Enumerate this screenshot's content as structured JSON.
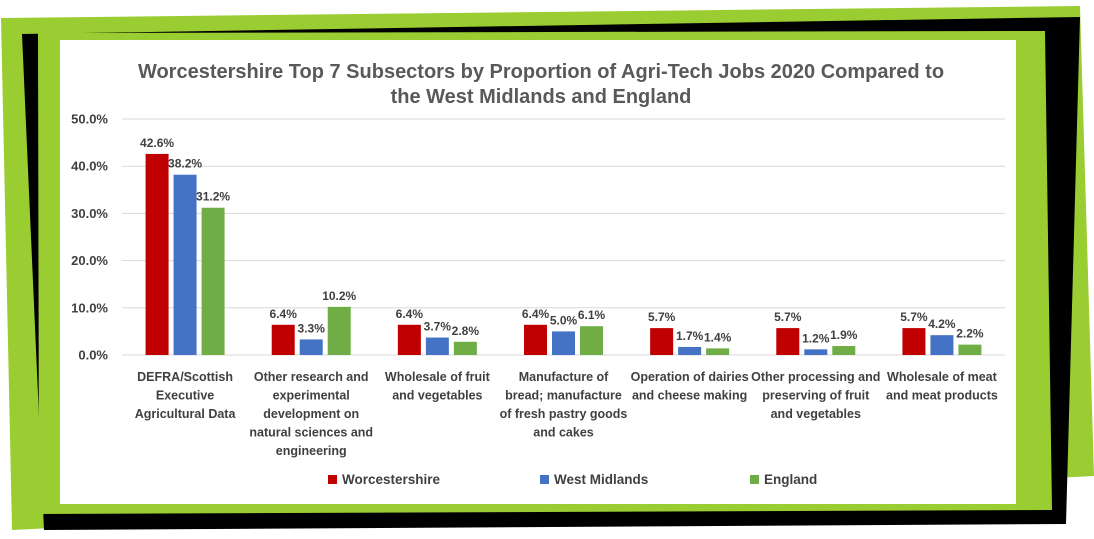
{
  "chart_data": {
    "type": "bar",
    "title": "Worcestershire Top 7 Subsectors by Proportion of Agri-Tech Jobs 2020 Compared to the West Midlands and England",
    "title_lines": [
      "Worcestershire Top 7 Subsectors by Proportion of Agri-Tech Jobs 2020 Compared to",
      "the West Midlands and England"
    ],
    "categories": [
      "DEFRA/Scottish Executive Agricultural Data",
      "Other research and experimental development on natural sciences and engineering",
      "Wholesale of fruit and vegetables",
      "Manufacture of bread; manufacture of fresh pastry goods and cakes",
      "Operation of dairies and cheese making",
      "Other processing and preserving of fruit and vegetables",
      "Wholesale of meat and meat products"
    ],
    "category_lines": [
      [
        "DEFRA/Scottish",
        "Executive",
        "Agricultural Data"
      ],
      [
        "Other research and",
        "experimental",
        "development on",
        "natural sciences and",
        "engineering"
      ],
      [
        "Wholesale of fruit",
        "and vegetables"
      ],
      [
        "Manufacture of",
        "bread; manufacture",
        "of fresh pastry goods",
        "and cakes"
      ],
      [
        "Operation of dairies",
        "and cheese making"
      ],
      [
        "Other processing and",
        "preserving of fruit",
        "and vegetables"
      ],
      [
        "Wholesale of meat",
        "and meat products"
      ]
    ],
    "series": [
      {
        "name": "Worcestershire",
        "color": "#c00000",
        "values": [
          42.6,
          6.4,
          6.4,
          6.4,
          5.7,
          5.7,
          5.7
        ],
        "labels": [
          "42.6%",
          "6.4%",
          "6.4%",
          "6.4%",
          "5.7%",
          "5.7%",
          "5.7%"
        ]
      },
      {
        "name": "West Midlands",
        "color": "#4472c4",
        "values": [
          38.2,
          3.3,
          3.7,
          5.0,
          1.7,
          1.2,
          4.2
        ],
        "labels": [
          "38.2%",
          "3.3%",
          "3.7%",
          "5.0%",
          "1.7%",
          "1.2%",
          "4.2%"
        ]
      },
      {
        "name": "England",
        "color": "#70ad47",
        "values": [
          31.2,
          10.2,
          2.8,
          6.1,
          1.4,
          1.9,
          2.2
        ],
        "labels": [
          "31.2%",
          "10.2%",
          "2.8%",
          "6.1%",
          "1.4%",
          "1.9%",
          "2.2%"
        ]
      }
    ],
    "ylim": [
      0,
      50
    ],
    "yticks": [
      0,
      10,
      20,
      30,
      40,
      50
    ],
    "ytick_labels": [
      "0.0%",
      "10.0%",
      "20.0%",
      "30.0%",
      "40.0%",
      "50.0%"
    ],
    "grid": true,
    "legend_position": "bottom",
    "frame_colors": {
      "green": "#9acd32",
      "black": "#000000"
    }
  }
}
